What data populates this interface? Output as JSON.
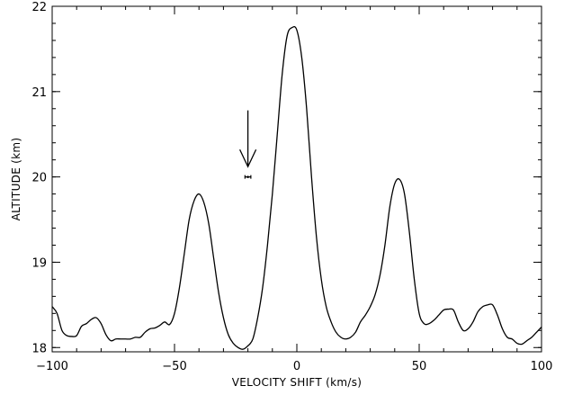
{
  "chart_data": {
    "type": "line",
    "title": "",
    "xlabel": "VELOCITY SHIFT (km/s)",
    "ylabel": "ALTITUDE (km)",
    "xlim": [
      -100,
      100
    ],
    "ylim": [
      17.95,
      22.0
    ],
    "x_major_ticks": [
      -100,
      -50,
      0,
      50,
      100
    ],
    "x_tick_labels": [
      "−100",
      "−50",
      "0",
      "50",
      "100"
    ],
    "y_major_ticks": [
      18,
      19,
      20,
      21,
      22
    ],
    "y_tick_labels": [
      "18",
      "19",
      "20",
      "21",
      "22"
    ],
    "x_minor_step": 10,
    "y_minor_step": 0.2,
    "grid": false,
    "legend": "none",
    "line_color": "#000000",
    "series": [
      {
        "x": [
          -100,
          -98,
          -96,
          -94,
          -92,
          -90,
          -88,
          -86,
          -84,
          -82,
          -80,
          -78,
          -76,
          -74,
          -72,
          -70,
          -68,
          -66,
          -64,
          -62,
          -60,
          -58,
          -56,
          -54,
          -52,
          -50,
          -48,
          -46,
          -44,
          -42,
          -40,
          -38,
          -36,
          -34,
          -32,
          -30,
          -28,
          -26,
          -24,
          -22,
          -20,
          -18,
          -16,
          -14,
          -12,
          -10,
          -8,
          -6,
          -4,
          -2,
          0,
          2,
          4,
          6,
          8,
          10,
          12,
          14,
          16,
          18,
          20,
          22,
          24,
          26,
          28,
          30,
          32,
          34,
          36,
          38,
          40,
          42,
          44,
          46,
          48,
          50,
          52,
          54,
          56,
          58,
          60,
          62,
          64,
          66,
          68,
          70,
          72,
          74,
          76,
          78,
          80,
          82,
          84,
          86,
          88,
          90,
          92,
          94,
          96,
          98,
          100
        ],
        "y": [
          18.48,
          18.4,
          18.2,
          18.14,
          18.13,
          18.14,
          18.25,
          18.28,
          18.33,
          18.35,
          18.28,
          18.15,
          18.08,
          18.1,
          18.1,
          18.1,
          18.1,
          18.12,
          18.12,
          18.18,
          18.22,
          18.23,
          18.26,
          18.3,
          18.27,
          18.4,
          18.7,
          19.1,
          19.5,
          19.72,
          19.8,
          19.7,
          19.45,
          19.05,
          18.65,
          18.35,
          18.15,
          18.05,
          18.0,
          17.98,
          18.02,
          18.1,
          18.35,
          18.7,
          19.2,
          19.8,
          20.5,
          21.2,
          21.65,
          21.75,
          21.72,
          21.4,
          20.8,
          20.0,
          19.3,
          18.8,
          18.48,
          18.3,
          18.18,
          18.12,
          18.1,
          18.12,
          18.18,
          18.3,
          18.38,
          18.48,
          18.62,
          18.85,
          19.2,
          19.65,
          19.92,
          19.97,
          19.8,
          19.35,
          18.8,
          18.4,
          18.28,
          18.28,
          18.32,
          18.38,
          18.44,
          18.45,
          18.44,
          18.3,
          18.2,
          18.22,
          18.3,
          18.42,
          18.48,
          18.5,
          18.5,
          18.38,
          18.22,
          18.12,
          18.1,
          18.05,
          18.04,
          18.08,
          18.12,
          18.18,
          18.24
        ]
      }
    ],
    "annotation": {
      "arrow_x": -20,
      "arrow_y_from": 20.78,
      "arrow_y_to": 20.12,
      "point_x": -20,
      "point_y": 20.0,
      "point_xerr": 1.2
    }
  }
}
